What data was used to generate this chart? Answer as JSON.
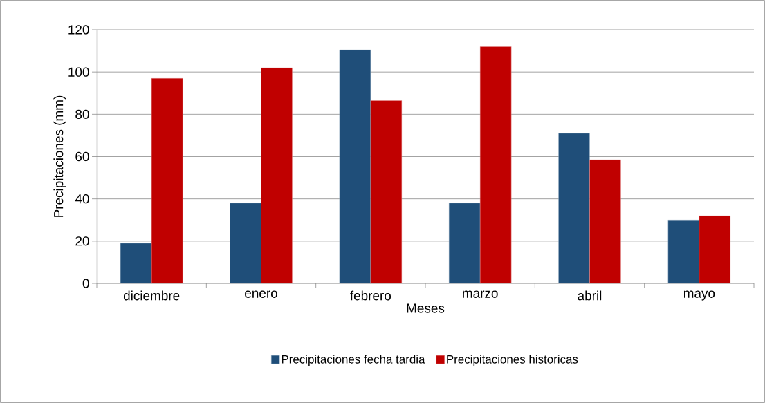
{
  "chart_data": {
    "type": "bar",
    "xlabel": "Meses",
    "ylabel": "Precipitaciones (mm)",
    "categories": [
      "diciembre",
      "enero",
      "febrero",
      "marzo",
      "abril",
      "mayo"
    ],
    "series": [
      {
        "name": "Precipitaciones fecha tardia",
        "color": "#1f4e79",
        "values": [
          19,
          38,
          110.5,
          38,
          71,
          30
        ]
      },
      {
        "name": "Precipitaciones historicas",
        "color": "#c00000",
        "values": [
          97,
          102,
          86.5,
          112,
          58.5,
          32
        ]
      }
    ],
    "ylim": [
      0,
      120
    ],
    "yticks": [
      0,
      20,
      40,
      60,
      80,
      100,
      120
    ],
    "grid": "y",
    "legend": "bottom"
  }
}
